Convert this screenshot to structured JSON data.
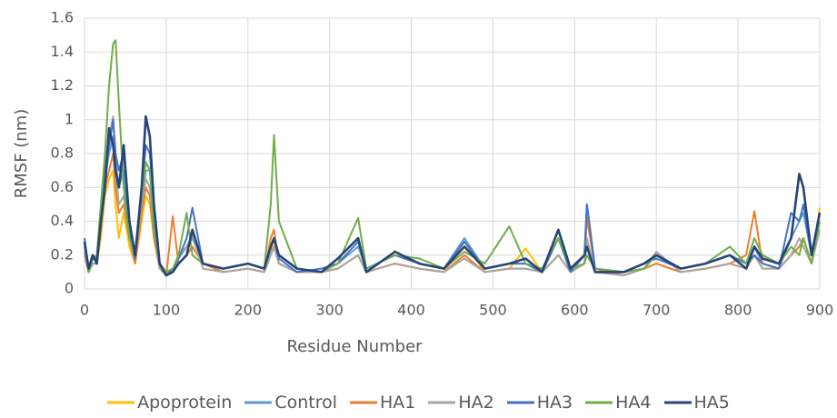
{
  "chart_data": {
    "type": "line",
    "xlabel": "Residue Number",
    "ylabel": "RMSF (nm)",
    "xlim": [
      0,
      900
    ],
    "xticks": [
      0,
      100,
      200,
      300,
      400,
      500,
      600,
      700,
      800,
      900
    ],
    "ylim": [
      0,
      1.6
    ],
    "yticks": [
      0,
      0.2,
      0.4,
      0.6,
      0.8,
      1,
      1.2,
      1.4,
      1.6
    ],
    "grid": true,
    "legend": "bottom",
    "x": [
      0,
      5,
      10,
      15,
      20,
      25,
      30,
      35,
      38,
      42,
      48,
      55,
      62,
      70,
      75,
      80,
      85,
      92,
      100,
      108,
      115,
      125,
      132,
      145,
      170,
      200,
      220,
      228,
      232,
      238,
      260,
      290,
      310,
      335,
      345,
      380,
      410,
      440,
      465,
      490,
      520,
      540,
      560,
      580,
      595,
      612,
      615,
      625,
      660,
      685,
      700,
      730,
      760,
      790,
      810,
      820,
      830,
      850,
      865,
      875,
      880,
      890,
      900
    ],
    "series": [
      {
        "name": "Apoprotein",
        "color": "#FFC000",
        "values": [
          0.25,
          0.1,
          0.15,
          0.15,
          0.3,
          0.55,
          0.65,
          0.7,
          0.5,
          0.3,
          0.45,
          0.25,
          0.15,
          0.4,
          0.55,
          0.5,
          0.3,
          0.12,
          0.08,
          0.1,
          0.15,
          0.2,
          0.25,
          0.15,
          0.1,
          0.12,
          0.1,
          0.2,
          0.3,
          0.15,
          0.1,
          0.1,
          0.12,
          0.2,
          0.1,
          0.15,
          0.12,
          0.1,
          0.28,
          0.1,
          0.12,
          0.24,
          0.1,
          0.2,
          0.1,
          0.15,
          0.3,
          0.1,
          0.08,
          0.12,
          0.15,
          0.1,
          0.12,
          0.15,
          0.12,
          0.2,
          0.12,
          0.12,
          0.2,
          0.25,
          0.3,
          0.15,
          0.48
        ]
      },
      {
        "name": "Control",
        "color": "#5B9BD5",
        "values": [
          0.3,
          0.1,
          0.2,
          0.15,
          0.4,
          0.65,
          0.8,
          0.9,
          0.75,
          0.6,
          0.7,
          0.35,
          0.18,
          0.5,
          0.7,
          0.7,
          0.4,
          0.15,
          0.1,
          0.12,
          0.18,
          0.25,
          0.3,
          0.15,
          0.12,
          0.15,
          0.12,
          0.2,
          0.25,
          0.15,
          0.1,
          0.1,
          0.15,
          0.25,
          0.12,
          0.2,
          0.15,
          0.12,
          0.3,
          0.12,
          0.15,
          0.15,
          0.1,
          0.3,
          0.1,
          0.2,
          0.5,
          0.12,
          0.1,
          0.15,
          0.2,
          0.12,
          0.15,
          0.2,
          0.15,
          0.25,
          0.15,
          0.12,
          0.3,
          0.4,
          0.45,
          0.2,
          0.45
        ]
      },
      {
        "name": "HA1",
        "color": "#ED7D31",
        "values": [
          0.2,
          0.1,
          0.15,
          0.15,
          0.35,
          0.6,
          0.7,
          0.8,
          0.6,
          0.45,
          0.5,
          0.3,
          0.15,
          0.45,
          0.6,
          0.55,
          0.3,
          0.12,
          0.08,
          0.43,
          0.15,
          0.2,
          0.25,
          0.15,
          0.1,
          0.12,
          0.1,
          0.3,
          0.35,
          0.15,
          0.1,
          0.1,
          0.12,
          0.2,
          0.1,
          0.15,
          0.12,
          0.1,
          0.2,
          0.1,
          0.12,
          0.12,
          0.1,
          0.2,
          0.1,
          0.15,
          0.42,
          0.12,
          0.08,
          0.12,
          0.15,
          0.1,
          0.12,
          0.15,
          0.2,
          0.46,
          0.15,
          0.12,
          0.2,
          0.25,
          0.3,
          0.15,
          0.4
        ]
      },
      {
        "name": "HA2",
        "color": "#A5A5A5",
        "values": [
          0.22,
          0.1,
          0.15,
          0.15,
          0.4,
          0.75,
          0.9,
          1.02,
          0.7,
          0.5,
          0.55,
          0.3,
          0.18,
          0.5,
          0.65,
          0.6,
          0.35,
          0.12,
          0.08,
          0.1,
          0.2,
          0.25,
          0.32,
          0.12,
          0.1,
          0.12,
          0.1,
          0.2,
          0.25,
          0.15,
          0.1,
          0.1,
          0.12,
          0.2,
          0.1,
          0.15,
          0.12,
          0.1,
          0.18,
          0.1,
          0.12,
          0.12,
          0.1,
          0.2,
          0.1,
          0.15,
          0.3,
          0.1,
          0.08,
          0.12,
          0.22,
          0.1,
          0.12,
          0.15,
          0.12,
          0.2,
          0.12,
          0.12,
          0.2,
          0.3,
          0.25,
          0.15,
          0.35
        ]
      },
      {
        "name": "HA3",
        "color": "#4472C4",
        "values": [
          0.3,
          0.1,
          0.18,
          0.18,
          0.45,
          0.7,
          0.85,
          1.0,
          0.8,
          0.7,
          0.8,
          0.35,
          0.18,
          0.55,
          0.85,
          0.8,
          0.45,
          0.15,
          0.08,
          0.12,
          0.18,
          0.3,
          0.48,
          0.15,
          0.12,
          0.15,
          0.12,
          0.25,
          0.3,
          0.18,
          0.1,
          0.12,
          0.15,
          0.28,
          0.12,
          0.2,
          0.15,
          0.12,
          0.28,
          0.12,
          0.15,
          0.15,
          0.1,
          0.3,
          0.1,
          0.2,
          0.5,
          0.12,
          0.1,
          0.15,
          0.18,
          0.12,
          0.15,
          0.2,
          0.15,
          0.2,
          0.15,
          0.12,
          0.45,
          0.4,
          0.5,
          0.2,
          0.45
        ]
      },
      {
        "name": "HA4",
        "color": "#70AD47",
        "values": [
          0.25,
          0.1,
          0.18,
          0.2,
          0.5,
          0.8,
          1.2,
          1.45,
          1.47,
          1.1,
          0.6,
          0.3,
          0.2,
          0.55,
          0.75,
          0.7,
          0.35,
          0.15,
          0.1,
          0.12,
          0.2,
          0.45,
          0.2,
          0.15,
          0.12,
          0.15,
          0.12,
          0.5,
          0.91,
          0.4,
          0.12,
          0.1,
          0.15,
          0.42,
          0.12,
          0.2,
          0.18,
          0.12,
          0.22,
          0.15,
          0.37,
          0.15,
          0.12,
          0.3,
          0.12,
          0.15,
          0.2,
          0.12,
          0.1,
          0.12,
          0.2,
          0.12,
          0.15,
          0.25,
          0.15,
          0.3,
          0.2,
          0.15,
          0.25,
          0.2,
          0.3,
          0.15,
          0.4
        ]
      },
      {
        "name": "HA5",
        "color": "#264478",
        "values": [
          0.28,
          0.12,
          0.2,
          0.15,
          0.4,
          0.6,
          0.95,
          0.85,
          0.7,
          0.6,
          0.85,
          0.4,
          0.2,
          0.6,
          1.02,
          0.9,
          0.5,
          0.15,
          0.08,
          0.1,
          0.15,
          0.2,
          0.35,
          0.15,
          0.12,
          0.15,
          0.12,
          0.25,
          0.3,
          0.2,
          0.12,
          0.1,
          0.18,
          0.3,
          0.1,
          0.22,
          0.15,
          0.12,
          0.25,
          0.12,
          0.15,
          0.18,
          0.1,
          0.35,
          0.12,
          0.2,
          0.25,
          0.1,
          0.1,
          0.15,
          0.2,
          0.12,
          0.15,
          0.2,
          0.12,
          0.25,
          0.18,
          0.15,
          0.3,
          0.68,
          0.6,
          0.2,
          0.45
        ]
      }
    ]
  }
}
